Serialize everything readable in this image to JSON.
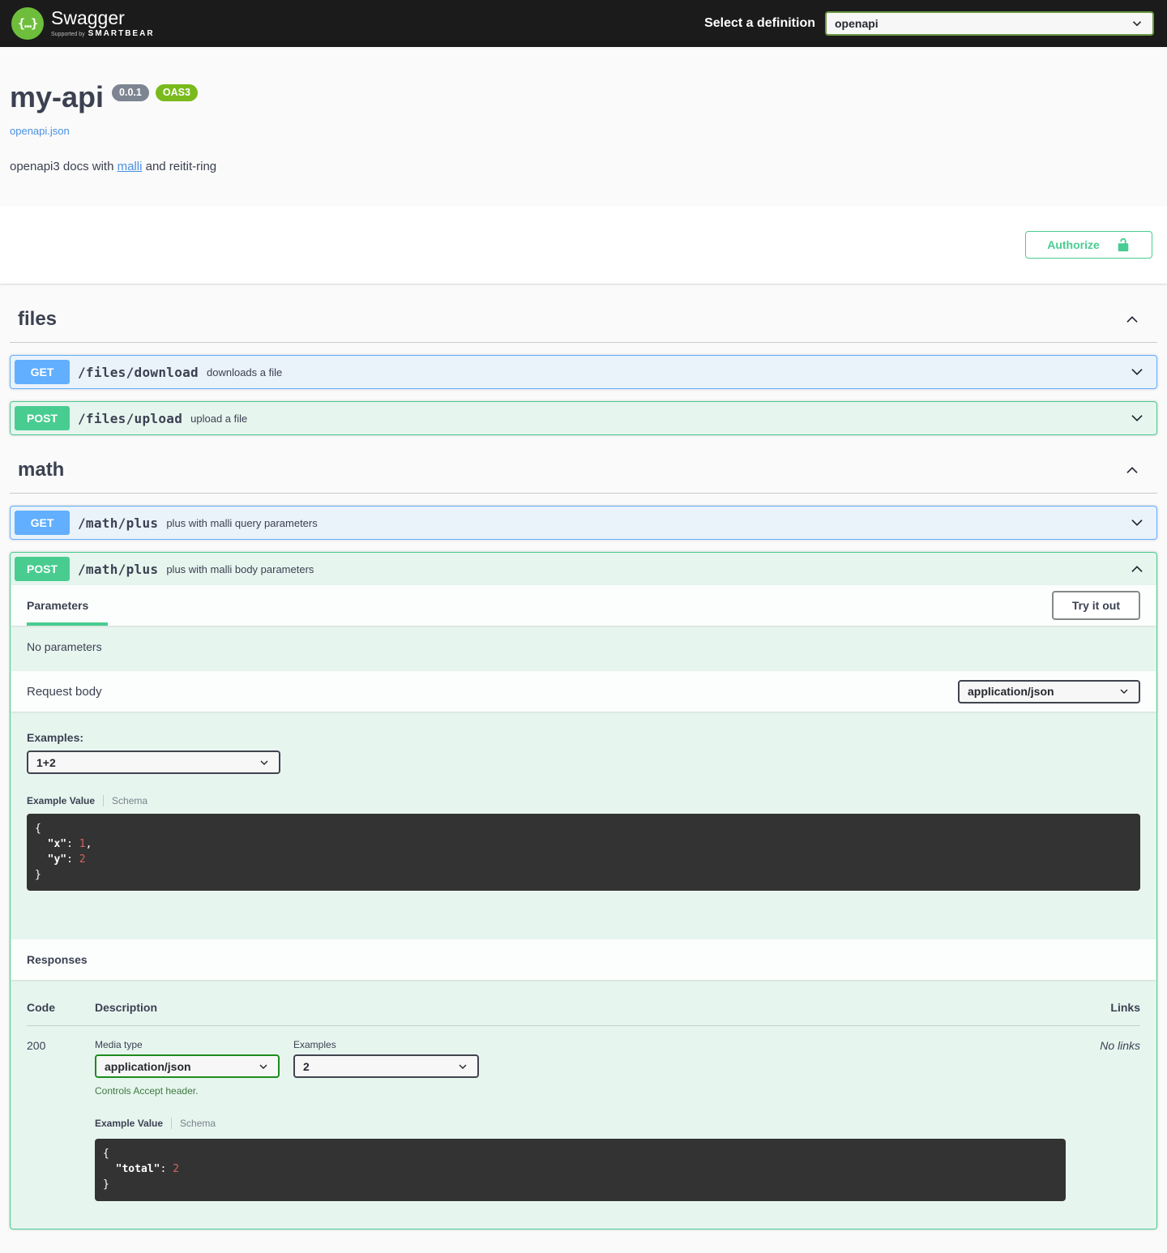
{
  "topbar": {
    "brand": "Swagger",
    "supported_by": "Supported by",
    "smartbear": "SMARTBEAR",
    "logo_braces": "{…}",
    "select_label": "Select a definition",
    "selected_definition": "openapi"
  },
  "info": {
    "title": "my-api",
    "version_badge": "0.0.1",
    "oas_badge": "OAS3",
    "spec_link": "openapi.json",
    "description_prefix": "openapi3 docs with ",
    "description_link": "malli",
    "description_suffix": " and reitit-ring"
  },
  "auth": {
    "authorize_label": "Authorize"
  },
  "tags": [
    {
      "name": "files",
      "ops": [
        {
          "method": "GET",
          "path": "/files/download",
          "summary": "downloads a file"
        },
        {
          "method": "POST",
          "path": "/files/upload",
          "summary": "upload a file"
        }
      ]
    },
    {
      "name": "math",
      "ops": [
        {
          "method": "GET",
          "path": "/math/plus",
          "summary": "plus with malli query parameters"
        },
        {
          "method": "POST",
          "path": "/math/plus",
          "summary": "plus with malli body parameters"
        }
      ]
    }
  ],
  "expanded": {
    "parameters_tab": "Parameters",
    "try_it_out": "Try it out",
    "no_parameters": "No parameters",
    "request_body_label": "Request body",
    "request_content_type": "application/json",
    "examples_label": "Examples:",
    "example_selected": "1+2",
    "example_value_tab": "Example Value",
    "schema_tab": "Schema",
    "request_example_json": "{\n  \"x\": 1,\n  \"y\": 2\n}",
    "responses_label": "Responses",
    "table_headers": {
      "code": "Code",
      "description": "Description",
      "links": "Links"
    },
    "response": {
      "code": "200",
      "media_type_label": "Media type",
      "media_type": "application/json",
      "examples_label": "Examples",
      "example_selected": "2",
      "accept_note": "Controls Accept header.",
      "example_value_tab": "Example Value",
      "schema_tab": "Schema",
      "example_json": "{\n  \"total\": 2\n}",
      "links": "No links"
    }
  },
  "colors": {
    "get_blue": "#61affe",
    "post_green": "#49cc90",
    "oas_badge_green": "#7aba1c",
    "version_badge_gray": "#7d8492",
    "code_number_red": "#d36363",
    "link_blue": "#4990e2",
    "topbar_black": "#1b1b1b"
  }
}
